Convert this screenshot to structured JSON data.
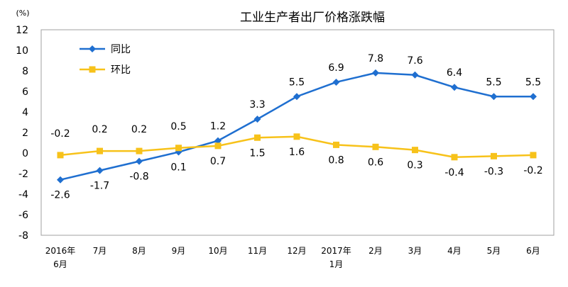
{
  "chart_data": {
    "type": "line",
    "title": "工业生产者出厂价格涨跌幅",
    "unit": "(%)",
    "ylim": [
      -8,
      12
    ],
    "yticks": [
      12,
      10,
      8,
      6,
      4,
      2,
      0,
      -2,
      -4,
      -6,
      -8
    ],
    "categories": [
      [
        "2016年",
        "6月"
      ],
      [
        "7月"
      ],
      [
        "8月"
      ],
      [
        "9月"
      ],
      [
        "10月"
      ],
      [
        "11月"
      ],
      [
        "12月"
      ],
      [
        "2017年",
        "1月"
      ],
      [
        "2月"
      ],
      [
        "3月"
      ],
      [
        "4月"
      ],
      [
        "5月"
      ],
      [
        "6月"
      ]
    ],
    "series": [
      {
        "name": "同比",
        "color": "#1f6fd0",
        "marker": "diamond",
        "values": [
          -2.6,
          -1.7,
          -0.8,
          0.1,
          1.2,
          3.3,
          5.5,
          6.9,
          7.8,
          7.6,
          6.4,
          5.5,
          5.5
        ],
        "labels": [
          "-2.6",
          "-1.7",
          "-0.8",
          "0.1",
          "1.2",
          "3.3",
          "5.5",
          "6.9",
          "7.8",
          "7.6",
          "6.4",
          "5.5",
          "5.5"
        ]
      },
      {
        "name": "环比",
        "color": "#f7c21a",
        "marker": "square",
        "values": [
          -0.2,
          0.2,
          0.2,
          0.5,
          0.7,
          1.5,
          1.6,
          0.8,
          0.6,
          0.3,
          -0.4,
          -0.3,
          -0.2
        ],
        "labels": [
          "-0.2",
          "0.2",
          "0.2",
          "0.5",
          "0.7",
          "1.5",
          "1.6",
          "0.8",
          "0.6",
          "0.3",
          "-0.4",
          "-0.3",
          "-0.2"
        ]
      }
    ],
    "legend": "top-left",
    "grid": false
  }
}
